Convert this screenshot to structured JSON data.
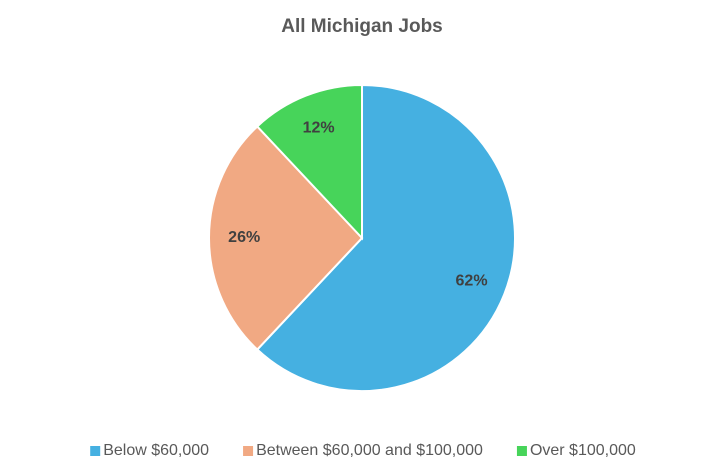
{
  "chart_data": {
    "type": "pie",
    "title": "All Michigan Jobs",
    "categories": [
      "Below $60,000",
      "Between $60,000 and $100,000",
      "Over $100,000"
    ],
    "values": [
      62,
      26,
      12
    ],
    "value_labels": [
      "62%",
      "26%",
      "12%"
    ],
    "colors": [
      "#45b0e1",
      "#f1a983",
      "#47d45a"
    ],
    "legend": "bottom"
  }
}
